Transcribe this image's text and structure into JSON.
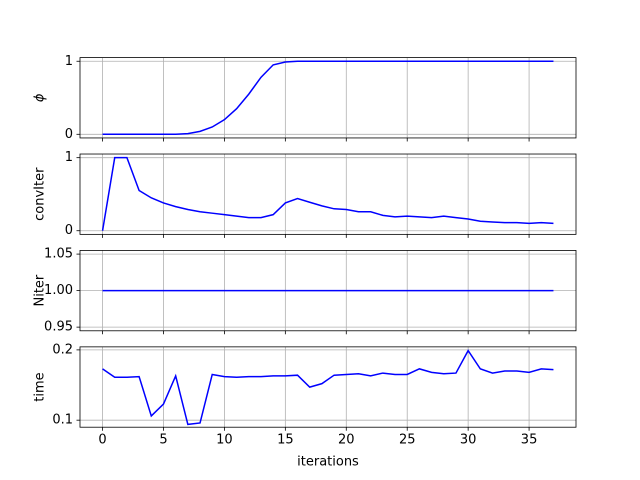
{
  "chart_data": [
    {
      "type": "line",
      "ylabel": "ϕ",
      "x": [
        0,
        1,
        2,
        3,
        4,
        5,
        6,
        7,
        8,
        9,
        10,
        11,
        12,
        13,
        14,
        15,
        16,
        17,
        18,
        19,
        20,
        21,
        22,
        23,
        24,
        25,
        26,
        27,
        28,
        29,
        30,
        31,
        32,
        33,
        34,
        35,
        36,
        37
      ],
      "series": [
        {
          "color": "#0000ff",
          "values": [
            0,
            0,
            0,
            0,
            0,
            0,
            0,
            0.01,
            0.04,
            0.1,
            0.2,
            0.35,
            0.55,
            0.78,
            0.95,
            0.99,
            1.0,
            1.0,
            1.0,
            1.0,
            1.0,
            1.0,
            1.0,
            1.0,
            1.0,
            1.0,
            1.0,
            1.0,
            1.0,
            1.0,
            1.0,
            1.0,
            1.0,
            1.0,
            1.0,
            1.0,
            1.0,
            1.0
          ]
        }
      ],
      "xlim": [
        -1.85,
        38.85
      ],
      "xticks": [
        0,
        5,
        10,
        15,
        20,
        25,
        30,
        35
      ],
      "ylim": [
        -0.05,
        1.05
      ],
      "yticks": [
        0,
        1
      ],
      "grid": true
    },
    {
      "type": "line",
      "ylabel": "convIter",
      "x": [
        0,
        1,
        2,
        3,
        4,
        5,
        6,
        7,
        8,
        9,
        10,
        11,
        12,
        13,
        14,
        15,
        16,
        17,
        18,
        19,
        20,
        21,
        22,
        23,
        24,
        25,
        26,
        27,
        28,
        29,
        30,
        31,
        32,
        33,
        34,
        35,
        36,
        37
      ],
      "series": [
        {
          "color": "#0000ff",
          "values": [
            0,
            1.0,
            1.0,
            0.55,
            0.45,
            0.38,
            0.33,
            0.29,
            0.26,
            0.24,
            0.22,
            0.2,
            0.18,
            0.18,
            0.22,
            0.38,
            0.44,
            0.39,
            0.34,
            0.3,
            0.29,
            0.26,
            0.26,
            0.21,
            0.19,
            0.2,
            0.19,
            0.18,
            0.2,
            0.18,
            0.16,
            0.13,
            0.12,
            0.11,
            0.11,
            0.1,
            0.11,
            0.1
          ]
        }
      ],
      "xlim": [
        -1.85,
        38.85
      ],
      "xticks": [
        0,
        5,
        10,
        15,
        20,
        25,
        30,
        35
      ],
      "ylim": [
        -0.05,
        1.05
      ],
      "yticks": [
        0,
        1
      ],
      "grid": true
    },
    {
      "type": "line",
      "ylabel": "Niter",
      "x": [
        0,
        1,
        2,
        3,
        4,
        5,
        6,
        7,
        8,
        9,
        10,
        11,
        12,
        13,
        14,
        15,
        16,
        17,
        18,
        19,
        20,
        21,
        22,
        23,
        24,
        25,
        26,
        27,
        28,
        29,
        30,
        31,
        32,
        33,
        34,
        35,
        36,
        37
      ],
      "series": [
        {
          "color": "#0000ff",
          "values": [
            1,
            1,
            1,
            1,
            1,
            1,
            1,
            1,
            1,
            1,
            1,
            1,
            1,
            1,
            1,
            1,
            1,
            1,
            1,
            1,
            1,
            1,
            1,
            1,
            1,
            1,
            1,
            1,
            1,
            1,
            1,
            1,
            1,
            1,
            1,
            1,
            1,
            1
          ]
        }
      ],
      "xlim": [
        -1.85,
        38.85
      ],
      "xticks": [
        0,
        5,
        10,
        15,
        20,
        25,
        30,
        35
      ],
      "ylim": [
        0.945,
        1.055
      ],
      "yticks": [
        {
          "value": 0.95,
          "label": "0.95"
        },
        {
          "value": 1.0,
          "label": "1.00"
        },
        {
          "value": 1.05,
          "label": "1.05"
        }
      ],
      "grid": true
    },
    {
      "type": "line",
      "ylabel": "time",
      "xlabel": "iterations",
      "x": [
        0,
        1,
        2,
        3,
        4,
        5,
        6,
        7,
        8,
        9,
        10,
        11,
        12,
        13,
        14,
        15,
        16,
        17,
        18,
        19,
        20,
        21,
        22,
        23,
        24,
        25,
        26,
        27,
        28,
        29,
        30,
        31,
        32,
        33,
        34,
        35,
        36,
        37
      ],
      "series": [
        {
          "color": "#0000ff",
          "values": [
            0.173,
            0.161,
            0.161,
            0.162,
            0.106,
            0.123,
            0.163,
            0.094,
            0.096,
            0.165,
            0.162,
            0.161,
            0.162,
            0.162,
            0.163,
            0.163,
            0.164,
            0.147,
            0.152,
            0.164,
            0.165,
            0.166,
            0.163,
            0.167,
            0.165,
            0.165,
            0.173,
            0.168,
            0.166,
            0.167,
            0.199,
            0.173,
            0.167,
            0.17,
            0.17,
            0.168,
            0.173,
            0.172
          ]
        }
      ],
      "xlim": [
        -1.85,
        38.85
      ],
      "xticks": [
        0,
        5,
        10,
        15,
        20,
        25,
        30,
        35
      ],
      "ylim": [
        0.09,
        0.2043
      ],
      "yticks": [
        0.1,
        0.2
      ],
      "grid": true
    }
  ]
}
